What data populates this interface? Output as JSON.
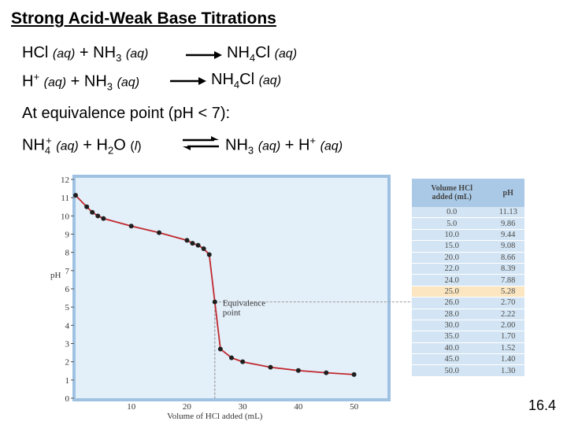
{
  "title": "Strong Acid-Weak Base Titrations",
  "equations": {
    "eq1": {
      "left_a": "HCl",
      "state_aq": "(aq)",
      "plus": "+",
      "nh": "NH",
      "sub3": "3",
      "right_a": "NH",
      "sub4": "4",
      "right_b": "Cl"
    },
    "eq2": {
      "h": "H",
      "sup_plus": "+",
      "state_aq": "(aq)",
      "plus": "+",
      "nh": "NH",
      "sub3": "3",
      "right_a": "NH",
      "sub4": "4",
      "right_b": "Cl"
    },
    "equiv_text": "At equivalence point (pH < 7):",
    "eq3": {
      "nh": "NH",
      "sub4": "4",
      "sup_plus": "+",
      "state_aq": "(aq)",
      "plus": "+",
      "h": "H",
      "sub2": "2",
      "o": "O",
      "state_l_open": "(",
      "state_l": "l",
      "state_l_close": ")",
      "nh3": "NH",
      "sub3": "3",
      "h_plus": "H",
      "sup_plus2": "+"
    }
  },
  "chart_data": {
    "type": "line",
    "xlabel": "Volume of HCl added (mL)",
    "ylabel": "pH",
    "xlim": [
      0,
      60
    ],
    "ylim": [
      0,
      12
    ],
    "x_ticks": [
      "10",
      "20",
      "30",
      "40",
      "50"
    ],
    "y_ticks": [
      "0",
      "1",
      "2",
      "3",
      "4",
      "5",
      "6",
      "7",
      "8",
      "9",
      "10",
      "11",
      "12"
    ],
    "annotation": "Equivalence point",
    "equivalence": {
      "x": 25.0,
      "y": 5.28
    },
    "points": [
      [
        0.0,
        11.13
      ],
      [
        2.0,
        10.5
      ],
      [
        3.0,
        10.2
      ],
      [
        4.0,
        10.0
      ],
      [
        5.0,
        9.86
      ],
      [
        10.0,
        9.44
      ],
      [
        15.0,
        9.08
      ],
      [
        20.0,
        8.66
      ],
      [
        21.0,
        8.5
      ],
      [
        22.0,
        8.39
      ],
      [
        23.0,
        8.2
      ],
      [
        24.0,
        7.88
      ],
      [
        25.0,
        5.28
      ],
      [
        26.0,
        2.7
      ],
      [
        28.0,
        2.22
      ],
      [
        30.0,
        2.0
      ],
      [
        35.0,
        1.7
      ],
      [
        40.0,
        1.52
      ],
      [
        45.0,
        1.4
      ],
      [
        50.0,
        1.3
      ]
    ],
    "colors": {
      "plot_bg": "#e3eff9",
      "curve": "#c0282e",
      "point": "#1f1f1f",
      "border": "#9fc2e2"
    }
  },
  "table": {
    "col1_header_line1": "Volume HCl",
    "col1_header_line2": "added (mL)",
    "col2_header": "pH",
    "highlight_row": 8,
    "rows": [
      [
        "0.0",
        "11.13"
      ],
      [
        "5.0",
        "9.86"
      ],
      [
        "10.0",
        "9.44"
      ],
      [
        "15.0",
        "9.08"
      ],
      [
        "20.0",
        "8.66"
      ],
      [
        "22.0",
        "8.39"
      ],
      [
        "24.0",
        "7.88"
      ],
      [
        "25.0",
        "5.28"
      ],
      [
        "26.0",
        "2.70"
      ],
      [
        "28.0",
        "2.22"
      ],
      [
        "30.0",
        "2.00"
      ],
      [
        "35.0",
        "1.70"
      ],
      [
        "40.0",
        "1.52"
      ],
      [
        "45.0",
        "1.40"
      ],
      [
        "50.0",
        "1.30"
      ]
    ]
  },
  "page_number": "16.4"
}
